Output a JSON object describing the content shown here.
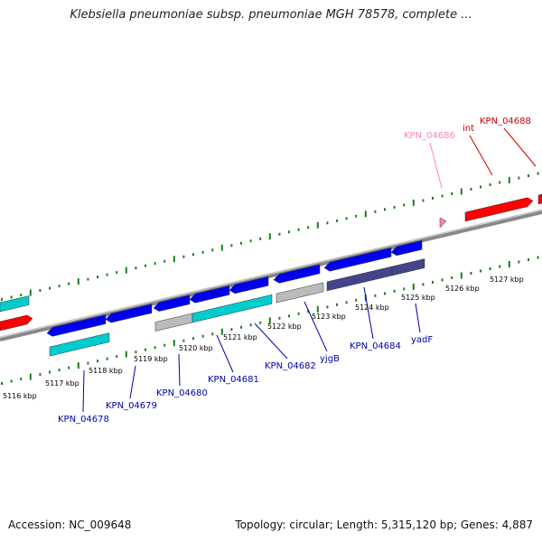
{
  "title": "Klebsiella pneumoniae subsp. pneumoniae MGH 78578, complete ...",
  "accession": "Accession: NC_009648",
  "summary": "Topology: circular; Length: 5,315,120 bp; Genes: 4,887",
  "colors": {
    "backbone": "#808080",
    "ruler": "#1e7d1e",
    "forward_gene": "#ff0000",
    "reverse_gene": "#0000ee",
    "cyan_gene": "#00cccc",
    "grey_gene": "#bbbbbb",
    "dark_gene": "#44448a",
    "pink_gene": "#ff80c0"
  },
  "ruler_labels": [
    "5116 kbp",
    "5117 kbp",
    "5118 kbp",
    "5119 kbp",
    "5120 kbp",
    "5121 kbp",
    "5122 kbp",
    "5123 kbp",
    "5124 kbp",
    "5125 kbp",
    "5126 kbp",
    "5127 kbp"
  ],
  "gene_labels": [
    {
      "text": "KPN_04678",
      "color": "#0000aa"
    },
    {
      "text": "KPN_04679",
      "color": "#0000aa"
    },
    {
      "text": "KPN_04680",
      "color": "#0000aa"
    },
    {
      "text": "KPN_04681",
      "color": "#0000aa"
    },
    {
      "text": "KPN_04682",
      "color": "#0000aa"
    },
    {
      "text": "yjgB",
      "color": "#0000aa"
    },
    {
      "text": "KPN_04684",
      "color": "#0000aa"
    },
    {
      "text": "yadF",
      "color": "#0000aa"
    },
    {
      "text": "KPN_04686",
      "color": "#ff80c0"
    },
    {
      "text": "int",
      "color": "#cc0000"
    },
    {
      "text": "KPN_04688",
      "color": "#cc0000"
    }
  ]
}
